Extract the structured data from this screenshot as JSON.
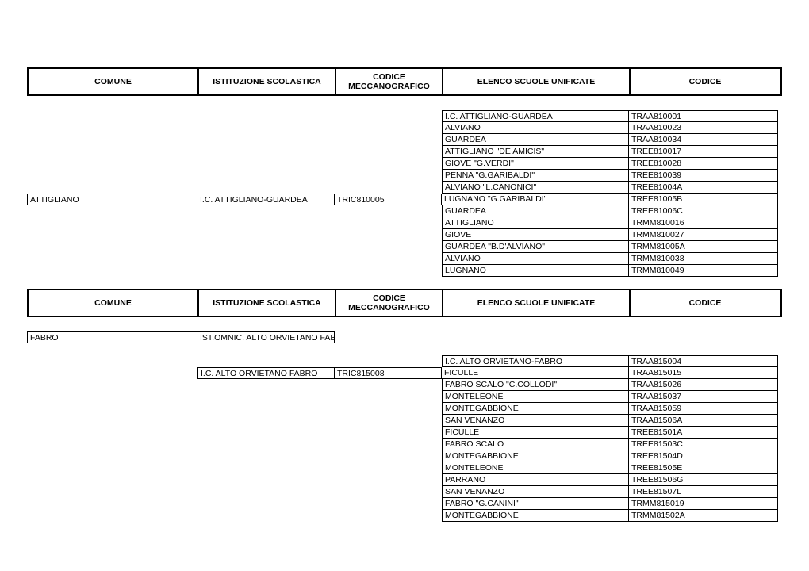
{
  "headers": {
    "comune": "COMUNE",
    "istituzione": "ISTITUZIONE SCOLASTICA",
    "codice_mecc": "CODICE MECCANOGRAFICO",
    "elenco": "ELENCO SCUOLE UNIFICATE",
    "codice": "CODICE"
  },
  "block1": {
    "comune": "ATTIGLIANO",
    "istituzione": "I.C. ATTIGLIANO-GUARDEA",
    "codice_mecc": "TRIC810005",
    "rows": [
      {
        "d": "I.C. ATTIGLIANO-GUARDEA",
        "e": "TRAA810001"
      },
      {
        "d": "ALVIANO",
        "e": "TRAA810023"
      },
      {
        "d": "GUARDEA",
        "e": "TRAA810034"
      },
      {
        "d": "ATTIGLIANO \"DE AMICIS\"",
        "e": "TREE810017"
      },
      {
        "d": "GIOVE \"G.VERDI\"",
        "e": "TREE810028"
      },
      {
        "d": "PENNA \"G.GARIBALDI\"",
        "e": "TREE810039"
      },
      {
        "d": "ALVIANO \"L.CANONICI\"",
        "e": "TREE81004A"
      },
      {
        "d": "LUGNANO \"G.GARIBALDI\"",
        "e": "TREE81005B"
      },
      {
        "d": "GUARDEA",
        "e": "TREE81006C"
      },
      {
        "d": "ATTIGLIANO",
        "e": "TRMM810016"
      },
      {
        "d": "GIOVE",
        "e": "TRMM810027"
      },
      {
        "d": "GUARDEA \"B.D'ALVIANO\"",
        "e": "TRMM81005A"
      },
      {
        "d": "ALVIANO",
        "e": "TRMM810038"
      },
      {
        "d": "LUGNANO",
        "e": "TRMM810049"
      }
    ],
    "abc_row_index": 7
  },
  "block2": {
    "fabro_row": {
      "a": "FABRO",
      "b": "IST.OMNIC. ALTO ORVIETANO FABRO"
    },
    "istituzione": "I.C. ALTO ORVIETANO FABRO",
    "codice_mecc": "TRIC815008",
    "rows": [
      {
        "d": "I.C. ALTO ORVIETANO-FABRO",
        "e": "TRAA815004"
      },
      {
        "d": "FICULLE",
        "e": "TRAA815015"
      },
      {
        "d": "FABRO SCALO \"C.COLLODI\"",
        "e": "TRAA815026"
      },
      {
        "d": "MONTELEONE",
        "e": "TRAA815037"
      },
      {
        "d": "MONTEGABBIONE",
        "e": "TRAA815059"
      },
      {
        "d": "SAN VENANZO",
        "e": "TRAA81506A"
      },
      {
        "d": "FICULLE",
        "e": "TREE81501A"
      },
      {
        "d": "FABRO SCALO",
        "e": "TREE81503C"
      },
      {
        "d": "MONTEGABBIONE",
        "e": "TREE81504D"
      },
      {
        "d": "MONTELEONE",
        "e": "TREE81505E"
      },
      {
        "d": "PARRANO",
        "e": "TREE81506G"
      },
      {
        "d": "SAN VENANZO",
        "e": "TREE81507L"
      },
      {
        "d": "FABRO \"G.CANINI\"",
        "e": "TRMM815019"
      },
      {
        "d": "MONTEGABBIONE",
        "e": "TRMM81502A"
      }
    ],
    "bc_row_index": 1
  }
}
